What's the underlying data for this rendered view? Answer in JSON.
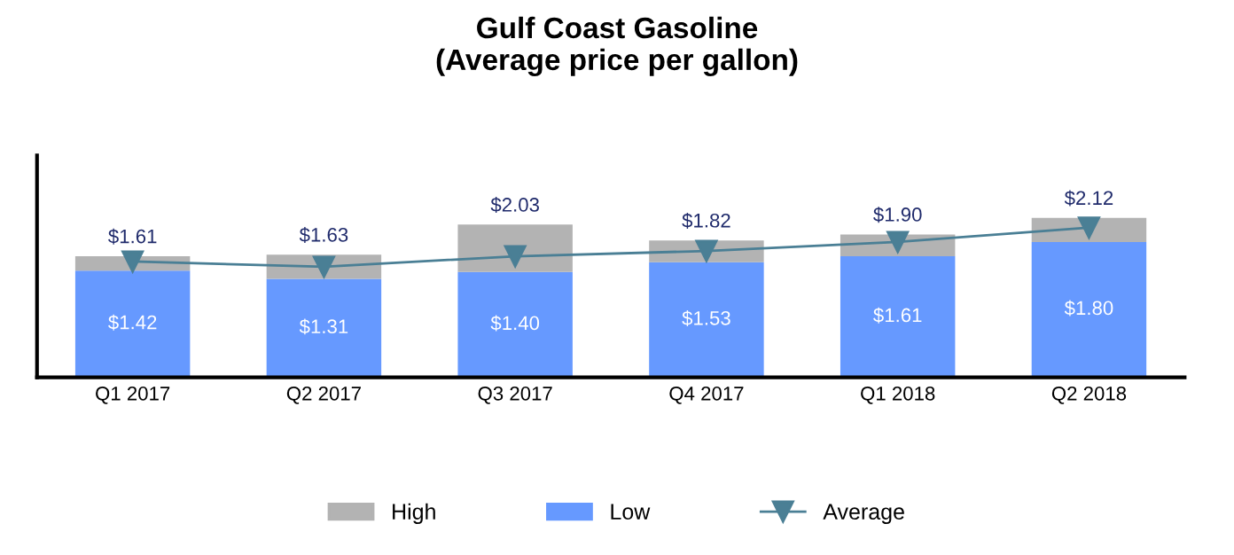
{
  "chart_data": {
    "type": "bar",
    "title": "Gulf Coast Gasoline\n(Average price per gallon)",
    "categories": [
      "Q1 2017",
      "Q2 2017",
      "Q3 2017",
      "Q4 2017",
      "Q1 2018",
      "Q2 2018"
    ],
    "stacked": true,
    "series": [
      {
        "name": "Low",
        "color": "#6699ff",
        "values": [
          1.42,
          1.31,
          1.4,
          1.53,
          1.61,
          1.8
        ],
        "value_labels": [
          "$1.42",
          "$1.31",
          "$1.40",
          "$1.53",
          "$1.61",
          "$1.80"
        ]
      },
      {
        "name": "High",
        "color": "#b3b3b3",
        "values": [
          0.19,
          0.32,
          0.63,
          0.29,
          0.29,
          0.32
        ]
      },
      {
        "name": "Average",
        "type": "line",
        "color": "#4a7f95",
        "marker": "triangle",
        "values": [
          1.54,
          1.47,
          1.61,
          1.68,
          1.8,
          1.99
        ]
      }
    ],
    "totals": [
      "$1.61",
      "$1.63",
      "$2.03",
      "$1.82",
      "$1.90",
      "$2.12"
    ],
    "ylim": [
      0,
      2.95
    ],
    "tick_labels": "x",
    "grid": false,
    "legend": "bottom"
  }
}
